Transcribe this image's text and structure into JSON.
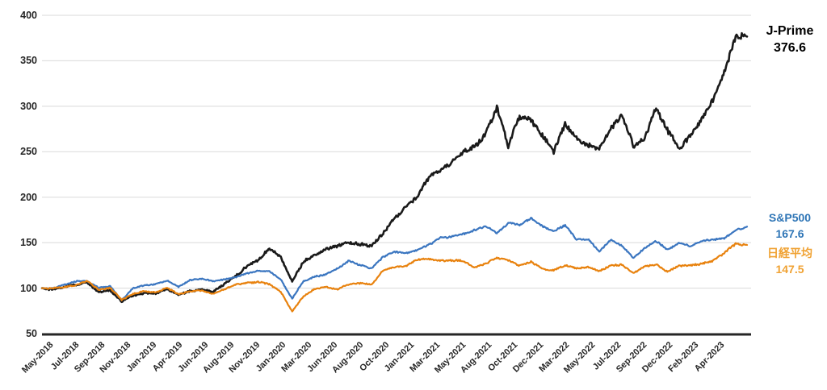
{
  "chart_data": {
    "type": "line",
    "title": "",
    "grid": "horizontal",
    "legend_position": "right",
    "ylim": [
      50,
      400
    ],
    "y_ticks": [
      400,
      350,
      300,
      250,
      200,
      150,
      100,
      50
    ],
    "x_tick_labels": [
      "May-2018",
      "Jul-2018",
      "Sep-2018",
      "Nov-2018",
      "Jan-2019",
      "Apr-2019",
      "Jun-2019",
      "Aug-2019",
      "Nov-2019",
      "Jan-2020",
      "Mar-2020",
      "Jun-2020",
      "Aug-2020",
      "Oct-2020",
      "Jan-2021",
      "Mar-2021",
      "May-2021",
      "Aug-2021",
      "Oct-2021",
      "Dec-2021",
      "Mar-2022",
      "May-2022",
      "Jul-2022",
      "Sep-2022",
      "Dec-2022",
      "Feb-2023",
      "Apr-2023"
    ],
    "months": [
      "May-2018",
      "Jun-2018",
      "Jul-2018",
      "Aug-2018",
      "Sep-2018",
      "Oct-2018",
      "Nov-2018",
      "Dec-2018",
      "Jan-2019",
      "Feb-2019",
      "Mar-2019",
      "Apr-2019",
      "May-2019",
      "Jun-2019",
      "Jul-2019",
      "Aug-2019",
      "Sep-2019",
      "Oct-2019",
      "Nov-2019",
      "Dec-2019",
      "Jan-2020",
      "Feb-2020",
      "Mar-2020",
      "Apr-2020",
      "May-2020",
      "Jun-2020",
      "Jul-2020",
      "Aug-2020",
      "Sep-2020",
      "Oct-2020",
      "Nov-2020",
      "Dec-2020",
      "Jan-2021",
      "Feb-2021",
      "Mar-2021",
      "Apr-2021",
      "May-2021",
      "Jun-2021",
      "Jul-2021",
      "Aug-2021",
      "Sep-2021",
      "Oct-2021",
      "Nov-2021",
      "Dec-2021",
      "Jan-2022",
      "Feb-2022",
      "Mar-2022",
      "Apr-2022",
      "May-2022",
      "Jun-2022",
      "Jul-2022",
      "Aug-2022",
      "Sep-2022",
      "Oct-2022",
      "Nov-2022",
      "Dec-2022",
      "Jan-2023",
      "Feb-2023",
      "Mar-2023",
      "Apr-2023",
      "May-2023",
      "Jun-2023",
      "Jul-2023"
    ],
    "series": [
      {
        "name": "J-Prime",
        "value_label": "376.6",
        "final_value": 376.6,
        "color": "#1a1a1a",
        "label_color": "#000000",
        "values": [
          100,
          98.5,
          101,
          103,
          105.5,
          95,
          97,
          85,
          92,
          95,
          94,
          99,
          92,
          96,
          98,
          95,
          103,
          112,
          124,
          131,
          142,
          133,
          108,
          130,
          138,
          145,
          147,
          152,
          150,
          148,
          162,
          178,
          190,
          200,
          222,
          228,
          235,
          248,
          252,
          270,
          298,
          255,
          292,
          288,
          268,
          252,
          280,
          262,
          255,
          250,
          272,
          288,
          256,
          264,
          296,
          276,
          255,
          270,
          288,
          310,
          336,
          378,
          376.6
        ]
      },
      {
        "name": "S&P500",
        "value_label": "167.6",
        "final_value": 167.6,
        "color": "#3b76c0",
        "label_color": "#2e75b6",
        "values": [
          100,
          100.5,
          104,
          107.5,
          108,
          100.5,
          102.5,
          87,
          100,
          103,
          105,
          109,
          102,
          109,
          110.5,
          108,
          110,
          112.5,
          116.5,
          119.5,
          119.3,
          109,
          88,
          107.5,
          112.5,
          114.5,
          121,
          129.5,
          124.5,
          121,
          134,
          139,
          137.5,
          141,
          147,
          154.5,
          155.5,
          159,
          163,
          167.5,
          160,
          170.5,
          169,
          176,
          167,
          162,
          168,
          153,
          153,
          140,
          152.5,
          146,
          133,
          143,
          151,
          142,
          150.5,
          147,
          152,
          154,
          155,
          164.5,
          167.6
        ]
      },
      {
        "name": "日経平均",
        "value_label": "147.5",
        "final_value": 147.5,
        "color": "#e8820e",
        "label_color": "#f0a233",
        "values": [
          100,
          100.5,
          101.5,
          103,
          108.5,
          98.5,
          100.5,
          87,
          93.5,
          96.5,
          95.5,
          100.5,
          93,
          96,
          97,
          93,
          98,
          103,
          105,
          106.5,
          104.5,
          95.5,
          74,
          90.5,
          98.5,
          100.5,
          98,
          104,
          104.5,
          103.5,
          119.5,
          123.5,
          124.5,
          130.5,
          131.5,
          129.5,
          130,
          129.5,
          123,
          126.5,
          132.5,
          130,
          125,
          130,
          121.5,
          119.5,
          125.5,
          121,
          123,
          119,
          125.5,
          126.5,
          117,
          124,
          126,
          117.5,
          123.5,
          124,
          126.5,
          130,
          139,
          149.5,
          147.5
        ]
      }
    ],
    "axis_colors": {
      "gridline": "#d9d9d9",
      "axis_line": "#262626",
      "tick_text": "#262626"
    }
  }
}
